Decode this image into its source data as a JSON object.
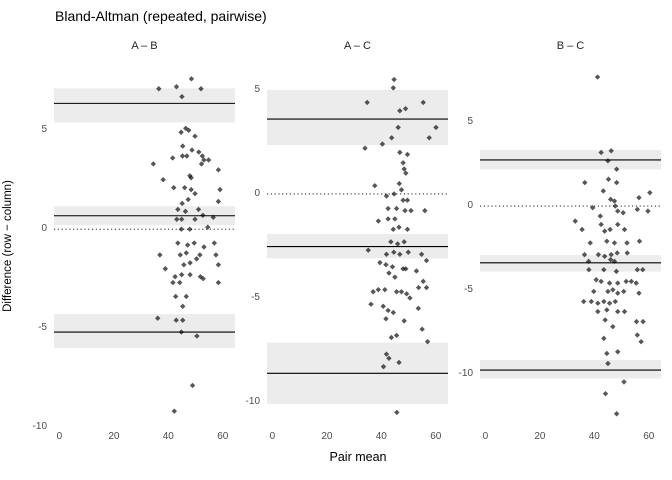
{
  "title": "Bland-Altman (repeated, pairwise)",
  "x_axis_label": "Pair mean",
  "y_axis_label": "Difference (row − column)",
  "colors": {
    "background": "#ffffff",
    "point": "#000000",
    "point_opacity": 0.66,
    "ci_band": "#ececec",
    "line": "#000000",
    "tick_text": "#4d4d4d",
    "title_text": "#000000"
  },
  "chart_data": {
    "type": "scatter",
    "title": "Bland-Altman (repeated, pairwise)",
    "xlabel": "Pair mean",
    "ylabel": "Difference (row − column)",
    "grid": "off",
    "legend": "none",
    "point_shape": "diamond",
    "x_ticks": [
      0,
      20,
      40,
      60
    ],
    "x_domain": [
      -2,
      64.5
    ],
    "facets": [
      {
        "label": "A – B",
        "y_ticks": [
          5,
          0,
          -5,
          -10
        ],
        "y_domain": [
          -10.05,
          8.3
        ],
        "zero_line": 0,
        "mean_diff": 0.68,
        "mean_ci": [
          0.2,
          1.16
        ],
        "upper_loa": 6.36,
        "upper_loa_ci": [
          5.4,
          7.12
        ],
        "lower_loa": -5.2,
        "lower_loa_ci": [
          -6.01,
          -4.29
        ],
        "points": [
          [
            36.5,
            7.1
          ],
          [
            43,
            7.2
          ],
          [
            48.5,
            7.6
          ],
          [
            52,
            7.1
          ],
          [
            45,
            6.7
          ],
          [
            46.4,
            5.1
          ],
          [
            44.7,
            4.9
          ],
          [
            47.5,
            5.0
          ],
          [
            49.8,
            4.7
          ],
          [
            45.3,
            4.2
          ],
          [
            48.7,
            4.0
          ],
          [
            51.2,
            3.9
          ],
          [
            52.5,
            3.7
          ],
          [
            41.6,
            3.6
          ],
          [
            45.2,
            3.7
          ],
          [
            46.8,
            3.7
          ],
          [
            53.1,
            3.5
          ],
          [
            54.8,
            3.5
          ],
          [
            34.5,
            3.3
          ],
          [
            52.2,
            3.3
          ],
          [
            58.4,
            3.0
          ],
          [
            38.1,
            2.5
          ],
          [
            47.9,
            2.7
          ],
          [
            48.4,
            2.6
          ],
          [
            42,
            2.1
          ],
          [
            46,
            2.1
          ],
          [
            48.4,
            2.0
          ],
          [
            49.8,
            1.8
          ],
          [
            59,
            2.0
          ],
          [
            58.4,
            1.4
          ],
          [
            47.3,
            1.5
          ],
          [
            45.1,
            1.3
          ],
          [
            43.5,
            1.0
          ],
          [
            46.3,
            0.9
          ],
          [
            51.1,
            1.0
          ],
          [
            52.7,
            0.7
          ],
          [
            43.1,
            0.5
          ],
          [
            44.9,
            0.5
          ],
          [
            49.8,
            0.5
          ],
          [
            56.5,
            0.6
          ],
          [
            44.8,
            0.0
          ],
          [
            47.9,
            0.0
          ],
          [
            54.5,
            0.1
          ],
          [
            43.5,
            -0.7
          ],
          [
            47.1,
            -0.8
          ],
          [
            49.5,
            -0.7
          ],
          [
            53.1,
            -0.9
          ],
          [
            56.9,
            -0.7
          ],
          [
            36.9,
            -1.3
          ],
          [
            44.4,
            -1.3
          ],
          [
            46.6,
            -1.2
          ],
          [
            51.6,
            -1.3
          ],
          [
            57.5,
            -1.3
          ],
          [
            45.7,
            -1.8
          ],
          [
            48,
            -1.7
          ],
          [
            50.4,
            -1.5
          ],
          [
            38.9,
            -2.0
          ],
          [
            42.5,
            -2.4
          ],
          [
            44.9,
            -2.3
          ],
          [
            52.8,
            -2.5
          ],
          [
            58.4,
            -1.8
          ],
          [
            41.7,
            -2.7
          ],
          [
            44.2,
            -2.7
          ],
          [
            48,
            -2.3
          ],
          [
            51.8,
            -2.4
          ],
          [
            58.4,
            -2.7
          ],
          [
            42.7,
            -3.4
          ],
          [
            46.6,
            -3.4
          ],
          [
            45.3,
            -3.9
          ],
          [
            36.1,
            -4.5
          ],
          [
            42.9,
            -4.6
          ],
          [
            45.3,
            -4.6
          ],
          [
            44.8,
            -5.2
          ],
          [
            50.5,
            -5.4
          ],
          [
            48.9,
            -7.9
          ],
          [
            42.2,
            -9.2
          ]
        ]
      },
      {
        "label": "A – C",
        "y_ticks": [
          5,
          0,
          -5,
          -10
        ],
        "y_domain": [
          -11.25,
          6.2
        ],
        "zero_line": 0,
        "mean_diff": -2.53,
        "mean_ci": [
          -3.09,
          -1.92
        ],
        "upper_loa": 3.6,
        "upper_loa_ci": [
          2.35,
          5.0
        ],
        "lower_loa": -8.62,
        "lower_loa_ci": [
          -10.1,
          -7.15
        ],
        "points": [
          [
            44.7,
            5.5
          ],
          [
            44.4,
            5.1
          ],
          [
            34.8,
            4.4
          ],
          [
            46.8,
            4.0
          ],
          [
            48.9,
            4.1
          ],
          [
            55.4,
            4.4
          ],
          [
            46.2,
            3.2
          ],
          [
            60.1,
            3.2
          ],
          [
            43.8,
            2.7
          ],
          [
            40.4,
            2.4
          ],
          [
            57.6,
            2.7
          ],
          [
            34,
            2.2
          ],
          [
            46.8,
            2.0
          ],
          [
            49.6,
            1.9
          ],
          [
            48,
            1.5
          ],
          [
            48.4,
            1.2
          ],
          [
            49,
            1.0
          ],
          [
            37.6,
            0.4
          ],
          [
            46.6,
            0.5
          ],
          [
            47.4,
            0.2
          ],
          [
            41.9,
            -0.1
          ],
          [
            44.7,
            0.0
          ],
          [
            48,
            -0.3
          ],
          [
            49.6,
            -0.3
          ],
          [
            42.5,
            -0.7
          ],
          [
            45.6,
            -0.7
          ],
          [
            48.7,
            -0.8
          ],
          [
            50.9,
            -0.8
          ],
          [
            56,
            -0.8
          ],
          [
            38.9,
            -1.3
          ],
          [
            42.5,
            -1.2
          ],
          [
            45,
            -1.2
          ],
          [
            46.5,
            -1.6
          ],
          [
            44.4,
            -1.7
          ],
          [
            49.6,
            -1.7
          ],
          [
            43.5,
            -2.3
          ],
          [
            46,
            -2.4
          ],
          [
            48.4,
            -2.3
          ],
          [
            35.2,
            -2.7
          ],
          [
            41.9,
            -2.9
          ],
          [
            44.6,
            -2.8
          ],
          [
            46.8,
            -2.9
          ],
          [
            49.9,
            -2.8
          ],
          [
            54.8,
            -2.9
          ],
          [
            56.6,
            -3.2
          ],
          [
            39.5,
            -3.3
          ],
          [
            41.7,
            -3.4
          ],
          [
            44.1,
            -3.5
          ],
          [
            48,
            -3.6
          ],
          [
            49,
            -3.6
          ],
          [
            42.8,
            -3.8
          ],
          [
            45,
            -4.0
          ],
          [
            52.9,
            -3.7
          ],
          [
            55.4,
            -4.2
          ],
          [
            56.6,
            -4.5
          ],
          [
            37,
            -4.7
          ],
          [
            38.9,
            -4.6
          ],
          [
            41.3,
            -4.6
          ],
          [
            45.6,
            -4.7
          ],
          [
            47.4,
            -4.7
          ],
          [
            49.3,
            -4.8
          ],
          [
            50.5,
            -5.0
          ],
          [
            53.7,
            -4.5
          ],
          [
            36.2,
            -5.3
          ],
          [
            40.7,
            -5.4
          ],
          [
            42.5,
            -5.6
          ],
          [
            44.4,
            -5.7
          ],
          [
            53.6,
            -5.5
          ],
          [
            41.7,
            -6.0
          ],
          [
            48.4,
            -6.1
          ],
          [
            55,
            -6.5
          ],
          [
            43.7,
            -6.9
          ],
          [
            45.6,
            -6.8
          ],
          [
            57,
            -7.1
          ],
          [
            41.9,
            -7.7
          ],
          [
            42.8,
            -7.9
          ],
          [
            40.8,
            -8.3
          ],
          [
            46.5,
            -8.1
          ],
          [
            45.7,
            -10.5
          ]
        ]
      },
      {
        "label": "B – C",
        "y_ticks": [
          5,
          0,
          -5,
          -10
        ],
        "y_domain": [
          -13.25,
          8.42
        ],
        "zero_line": 0,
        "mean_diff": -3.39,
        "mean_ci": [
          -3.92,
          -2.93
        ],
        "upper_loa": 2.75,
        "upper_loa_ci": [
          2.19,
          3.34
        ],
        "lower_loa": -9.79,
        "lower_loa_ci": [
          -10.29,
          -9.19
        ],
        "points": [
          [
            41.2,
            7.7
          ],
          [
            42.5,
            3.2
          ],
          [
            46.2,
            3.3
          ],
          [
            45,
            2.7
          ],
          [
            48.2,
            2.2
          ],
          [
            36.5,
            1.4
          ],
          [
            45.2,
            1.6
          ],
          [
            48.2,
            1.4
          ],
          [
            43.3,
            0.9
          ],
          [
            46,
            0.4
          ],
          [
            47.4,
            0.3
          ],
          [
            56.4,
            0.5
          ],
          [
            60.4,
            0.8
          ],
          [
            39.4,
            -0.1
          ],
          [
            42.2,
            -0.6
          ],
          [
            47.7,
            0.0
          ],
          [
            48.6,
            -0.3
          ],
          [
            50.6,
            -0.4
          ],
          [
            55.8,
            -0.2
          ],
          [
            59.7,
            -0.3
          ],
          [
            33,
            -0.9
          ],
          [
            42.5,
            -1.1
          ],
          [
            48.6,
            -1.1
          ],
          [
            51.1,
            -1.4
          ],
          [
            35.5,
            -1.4
          ],
          [
            43.8,
            -1.5
          ],
          [
            45.8,
            -1.4
          ],
          [
            38.5,
            -2.2
          ],
          [
            44.6,
            -2.1
          ],
          [
            47.4,
            -2.2
          ],
          [
            52,
            -2.2
          ],
          [
            56.6,
            -2.1
          ],
          [
            36.4,
            -2.9
          ],
          [
            41.5,
            -2.9
          ],
          [
            43.8,
            -3.0
          ],
          [
            46.2,
            -2.9
          ],
          [
            48.4,
            -2.8
          ],
          [
            52.1,
            -2.8
          ],
          [
            37.9,
            -3.3
          ],
          [
            46,
            -3.2
          ],
          [
            47.4,
            -3.3
          ],
          [
            38,
            -3.8
          ],
          [
            43.5,
            -3.8
          ],
          [
            48.1,
            -3.9
          ],
          [
            55.8,
            -3.8
          ],
          [
            57.8,
            -3.8
          ],
          [
            40.7,
            -4.4
          ],
          [
            42.5,
            -4.5
          ],
          [
            45.6,
            -4.6
          ],
          [
            48.6,
            -4.6
          ],
          [
            51.7,
            -4.5
          ],
          [
            53.6,
            -4.5
          ],
          [
            55.4,
            -4.6
          ],
          [
            39.8,
            -5.1
          ],
          [
            45,
            -5.1
          ],
          [
            46.8,
            -5.0
          ],
          [
            48.6,
            -5.2
          ],
          [
            50.8,
            -5.1
          ],
          [
            56.4,
            -5.2
          ],
          [
            36.1,
            -5.7
          ],
          [
            38.9,
            -5.7
          ],
          [
            41.3,
            -5.8
          ],
          [
            43.5,
            -5.7
          ],
          [
            45.6,
            -5.8
          ],
          [
            47.7,
            -5.7
          ],
          [
            41.3,
            -6.3
          ],
          [
            44.6,
            -6.2
          ],
          [
            48.6,
            -6.3
          ],
          [
            51.1,
            -6.3
          ],
          [
            44,
            -6.8
          ],
          [
            46.8,
            -7.2
          ],
          [
            55.5,
            -6.9
          ],
          [
            57.9,
            -6.9
          ],
          [
            43.5,
            -7.9
          ],
          [
            55.8,
            -7.7
          ],
          [
            57.2,
            -8.1
          ],
          [
            44.6,
            -8.8
          ],
          [
            48.6,
            -8.7
          ],
          [
            45,
            -9.4
          ],
          [
            50.9,
            -10.5
          ],
          [
            44.1,
            -11.2
          ],
          [
            48.2,
            -12.4
          ]
        ]
      }
    ]
  }
}
